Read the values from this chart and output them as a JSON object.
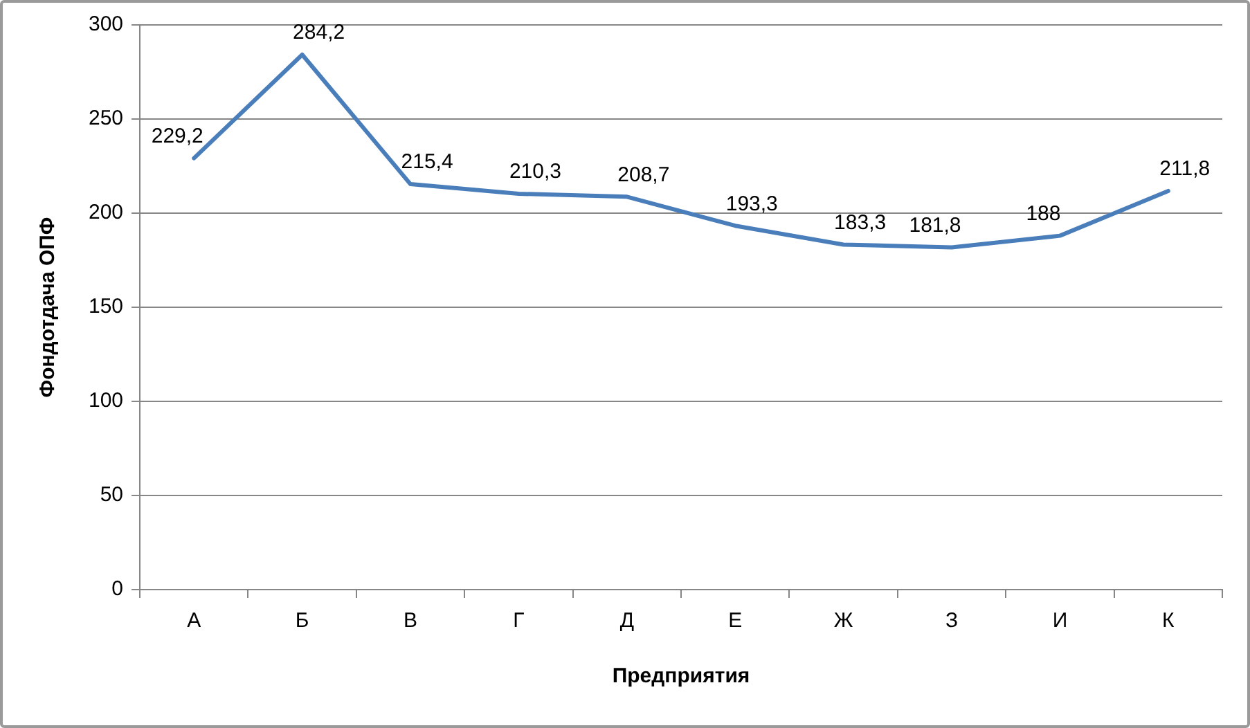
{
  "chart_data": {
    "type": "line",
    "xlabel": "Предприятия",
    "ylabel": "Фондотдача ОПФ",
    "categories": [
      "А",
      "Б",
      "В",
      "Г",
      "Д",
      "Е",
      "Ж",
      "З",
      "И",
      "К"
    ],
    "series": [
      {
        "color": "#4a7ebb",
        "values": [
          229.2,
          284.2,
          215.4,
          210.3,
          208.7,
          193.3,
          183.3,
          181.8,
          188,
          211.8
        ],
        "value_labels": [
          "229,2",
          "284,2",
          "215,4",
          "210,3",
          "208,7",
          "193,3",
          "183,3",
          "181,8",
          "188",
          "211,8"
        ]
      }
    ],
    "ylim": [
      0,
      300
    ],
    "yticks": [
      0,
      50,
      100,
      150,
      200,
      250,
      300
    ],
    "grid": "y",
    "legend": false,
    "marker": "none",
    "line_style": "solid"
  }
}
